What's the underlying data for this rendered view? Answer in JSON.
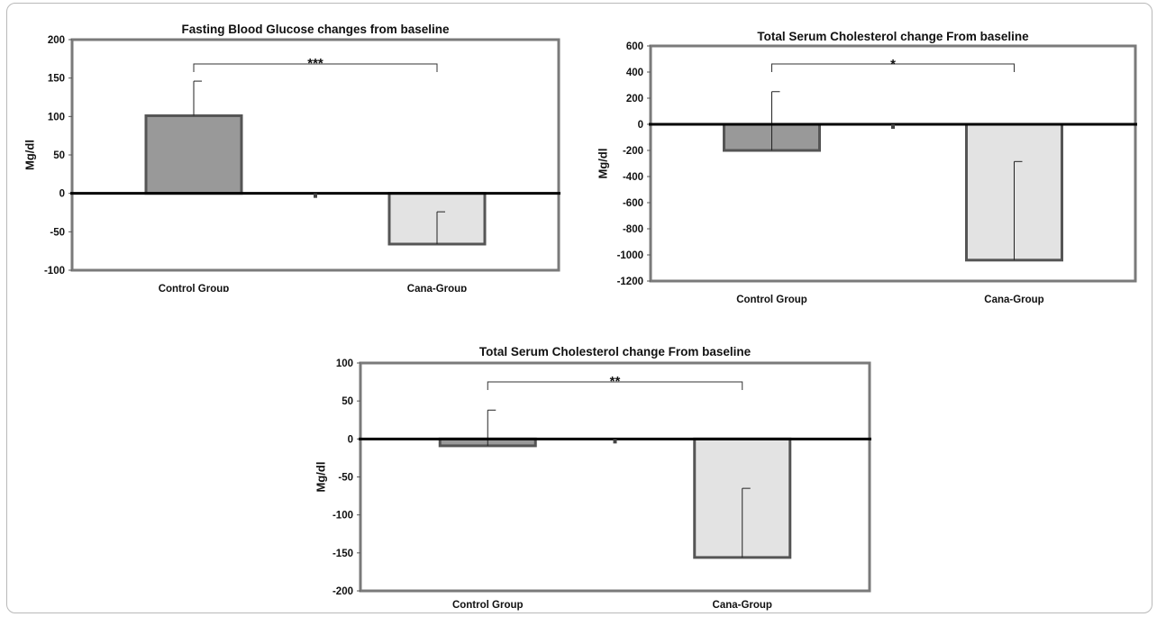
{
  "chart_data": [
    {
      "type": "bar",
      "title": "Fasting Blood Glucose changes from baseline",
      "ylabel": "Mg/dl",
      "xlabel": "",
      "ylim": [
        -100,
        200
      ],
      "yticks": [
        200,
        150,
        100,
        50,
        0,
        -50,
        -100
      ],
      "categories": [
        "Control Group",
        "Cana-Group"
      ],
      "values": [
        101,
        -66
      ],
      "error_bar_tips": [
        146,
        -24
      ],
      "bar_colors": [
        "#999999",
        "#e3e3e3"
      ],
      "significance": "***",
      "legend": "none",
      "grid": false
    },
    {
      "type": "bar",
      "title": "Total Serum Cholesterol change From baseline",
      "ylabel": "Mg/dl",
      "xlabel": "",
      "ylim": [
        -1200,
        600
      ],
      "yticks": [
        600,
        400,
        200,
        0,
        -200,
        -400,
        -600,
        -800,
        -1000,
        -1200
      ],
      "categories": [
        "Control Group",
        "Cana-Group"
      ],
      "values": [
        -200,
        -1040
      ],
      "error_bar_tips": [
        250,
        -285
      ],
      "bar_colors": [
        "#999999",
        "#e3e3e3"
      ],
      "significance": "*",
      "legend": "none",
      "grid": false
    },
    {
      "type": "bar",
      "title": "Total Serum Cholesterol change From baseline",
      "ylabel": "Mg/dl",
      "xlabel": "",
      "ylim": [
        -200,
        100
      ],
      "yticks": [
        100,
        50,
        0,
        -50,
        -100,
        -150,
        -200
      ],
      "categories": [
        "Control Group",
        "Cana-Group"
      ],
      "values": [
        -9,
        -156
      ],
      "error_bar_tips": [
        38,
        -65
      ],
      "bar_colors": [
        "#999999",
        "#e3e3e3"
      ],
      "significance": "**",
      "legend": "none",
      "grid": false
    }
  ]
}
